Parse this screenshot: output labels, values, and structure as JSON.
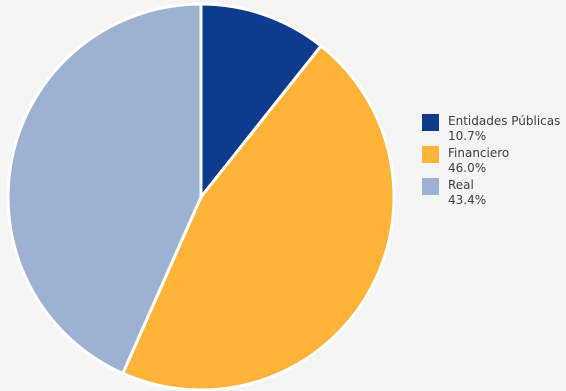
{
  "chart_data": {
    "type": "pie",
    "title": "",
    "start_angle_deg": 0,
    "direction": "clockwise",
    "slices": [
      {
        "label": "Entidades Públicas",
        "value": 10.7,
        "value_label": "10.7%",
        "color": "#0d3c8f"
      },
      {
        "label": "Financiero",
        "value": 46.0,
        "value_label": "46.0%",
        "color": "#ffb339"
      },
      {
        "label": "Real",
        "value": 43.4,
        "value_label": "43.4%",
        "color": "#9db1d3"
      }
    ],
    "legend_position": "right"
  }
}
